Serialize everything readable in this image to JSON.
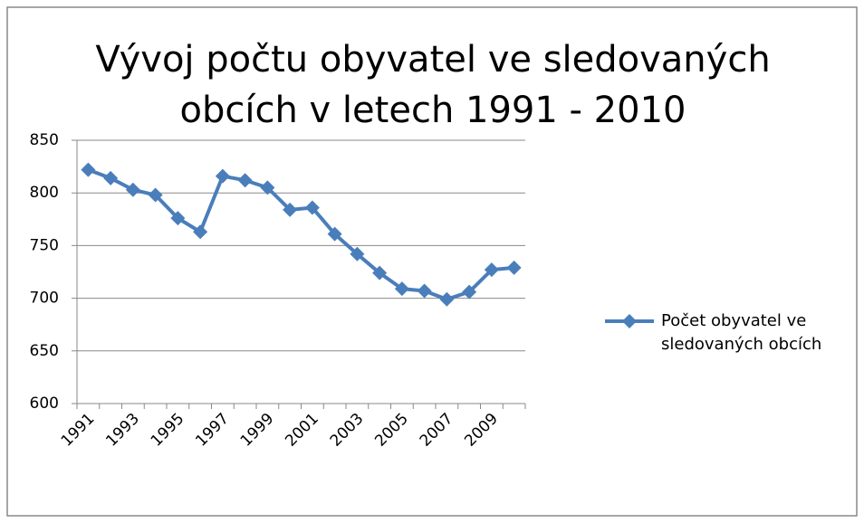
{
  "chart_data": {
    "type": "line",
    "title": "Vývoj počtu obyvatel ve sledovaných obcích v letech 1991 - 2010",
    "categories": [
      "1991",
      null,
      "1993",
      null,
      "1995",
      null,
      "1997",
      null,
      "1999",
      null,
      "2001",
      null,
      "2003",
      null,
      "2005",
      null,
      "2007",
      null,
      "2009",
      null
    ],
    "series": [
      {
        "name": "Počet obyvatel ve sledovaných obcích",
        "color": "#4a7ebb",
        "values": [
          822,
          814,
          803,
          798,
          776,
          763,
          816,
          812,
          805,
          784,
          786,
          761,
          742,
          724,
          709,
          707,
          699,
          706,
          727,
          729
        ]
      }
    ],
    "ylim": [
      600,
      850
    ],
    "yticks": [
      600,
      650,
      700,
      750,
      800,
      850
    ],
    "grid": true,
    "legend": "right"
  }
}
